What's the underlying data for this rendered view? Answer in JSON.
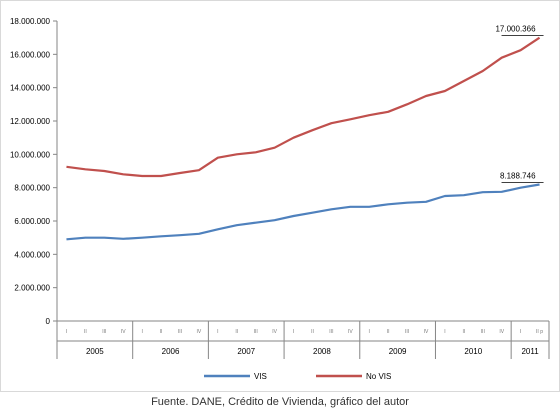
{
  "chart_data": {
    "type": "line",
    "title": "",
    "xlabel": "",
    "ylabel": "",
    "ylim": [
      0,
      18000000
    ],
    "y_ticks": [
      "0",
      "2.000.000",
      "4.000.000",
      "6.000.000",
      "8.000.000",
      "10.000.000",
      "12.000.000",
      "14.000.000",
      "16.000.000",
      "18.000.000"
    ],
    "y_tick_values": [
      0,
      2000000,
      4000000,
      6000000,
      8000000,
      10000000,
      12000000,
      14000000,
      16000000,
      18000000
    ],
    "grid": false,
    "legend": "bottom",
    "years": [
      {
        "label": "2005",
        "quarters": [
          "I",
          "II",
          "III",
          "IV"
        ]
      },
      {
        "label": "2006",
        "quarters": [
          "I",
          "II",
          "III",
          "IV"
        ]
      },
      {
        "label": "2007",
        "quarters": [
          "I",
          "II",
          "III",
          "IV"
        ]
      },
      {
        "label": "2008",
        "quarters": [
          "I",
          "II",
          "III",
          "IV"
        ]
      },
      {
        "label": "2009",
        "quarters": [
          "I",
          "II",
          "III",
          "IV"
        ]
      },
      {
        "label": "2010",
        "quarters": [
          "I",
          "II",
          "III",
          "IV"
        ]
      },
      {
        "label": "2011",
        "quarters": [
          "I",
          "II p"
        ]
      }
    ],
    "series": [
      {
        "name": "VIS",
        "color": "#4f81bd",
        "values": [
          4900000,
          5000000,
          5000000,
          4930000,
          5000000,
          5080000,
          5150000,
          5230000,
          5500000,
          5750000,
          5900000,
          6050000,
          6300000,
          6500000,
          6700000,
          6850000,
          6850000,
          7000000,
          7100000,
          7150000,
          7500000,
          7550000,
          7730000,
          7750000,
          8000000,
          8188746
        ],
        "end_label": "8.188.746"
      },
      {
        "name": "No VIS",
        "color": "#c0504d",
        "values": [
          9250000,
          9100000,
          9000000,
          8800000,
          8700000,
          8700000,
          8880000,
          9050000,
          9800000,
          10000000,
          10120000,
          10400000,
          11000000,
          11450000,
          11870000,
          12100000,
          12350000,
          12550000,
          13000000,
          13500000,
          13800000,
          14400000,
          15000000,
          15800000,
          16250000,
          17000366
        ],
        "end_label": "17.000.366"
      }
    ]
  },
  "source_text": "Fuente. DANE, Crédito de Vivienda, gráfico del autor"
}
